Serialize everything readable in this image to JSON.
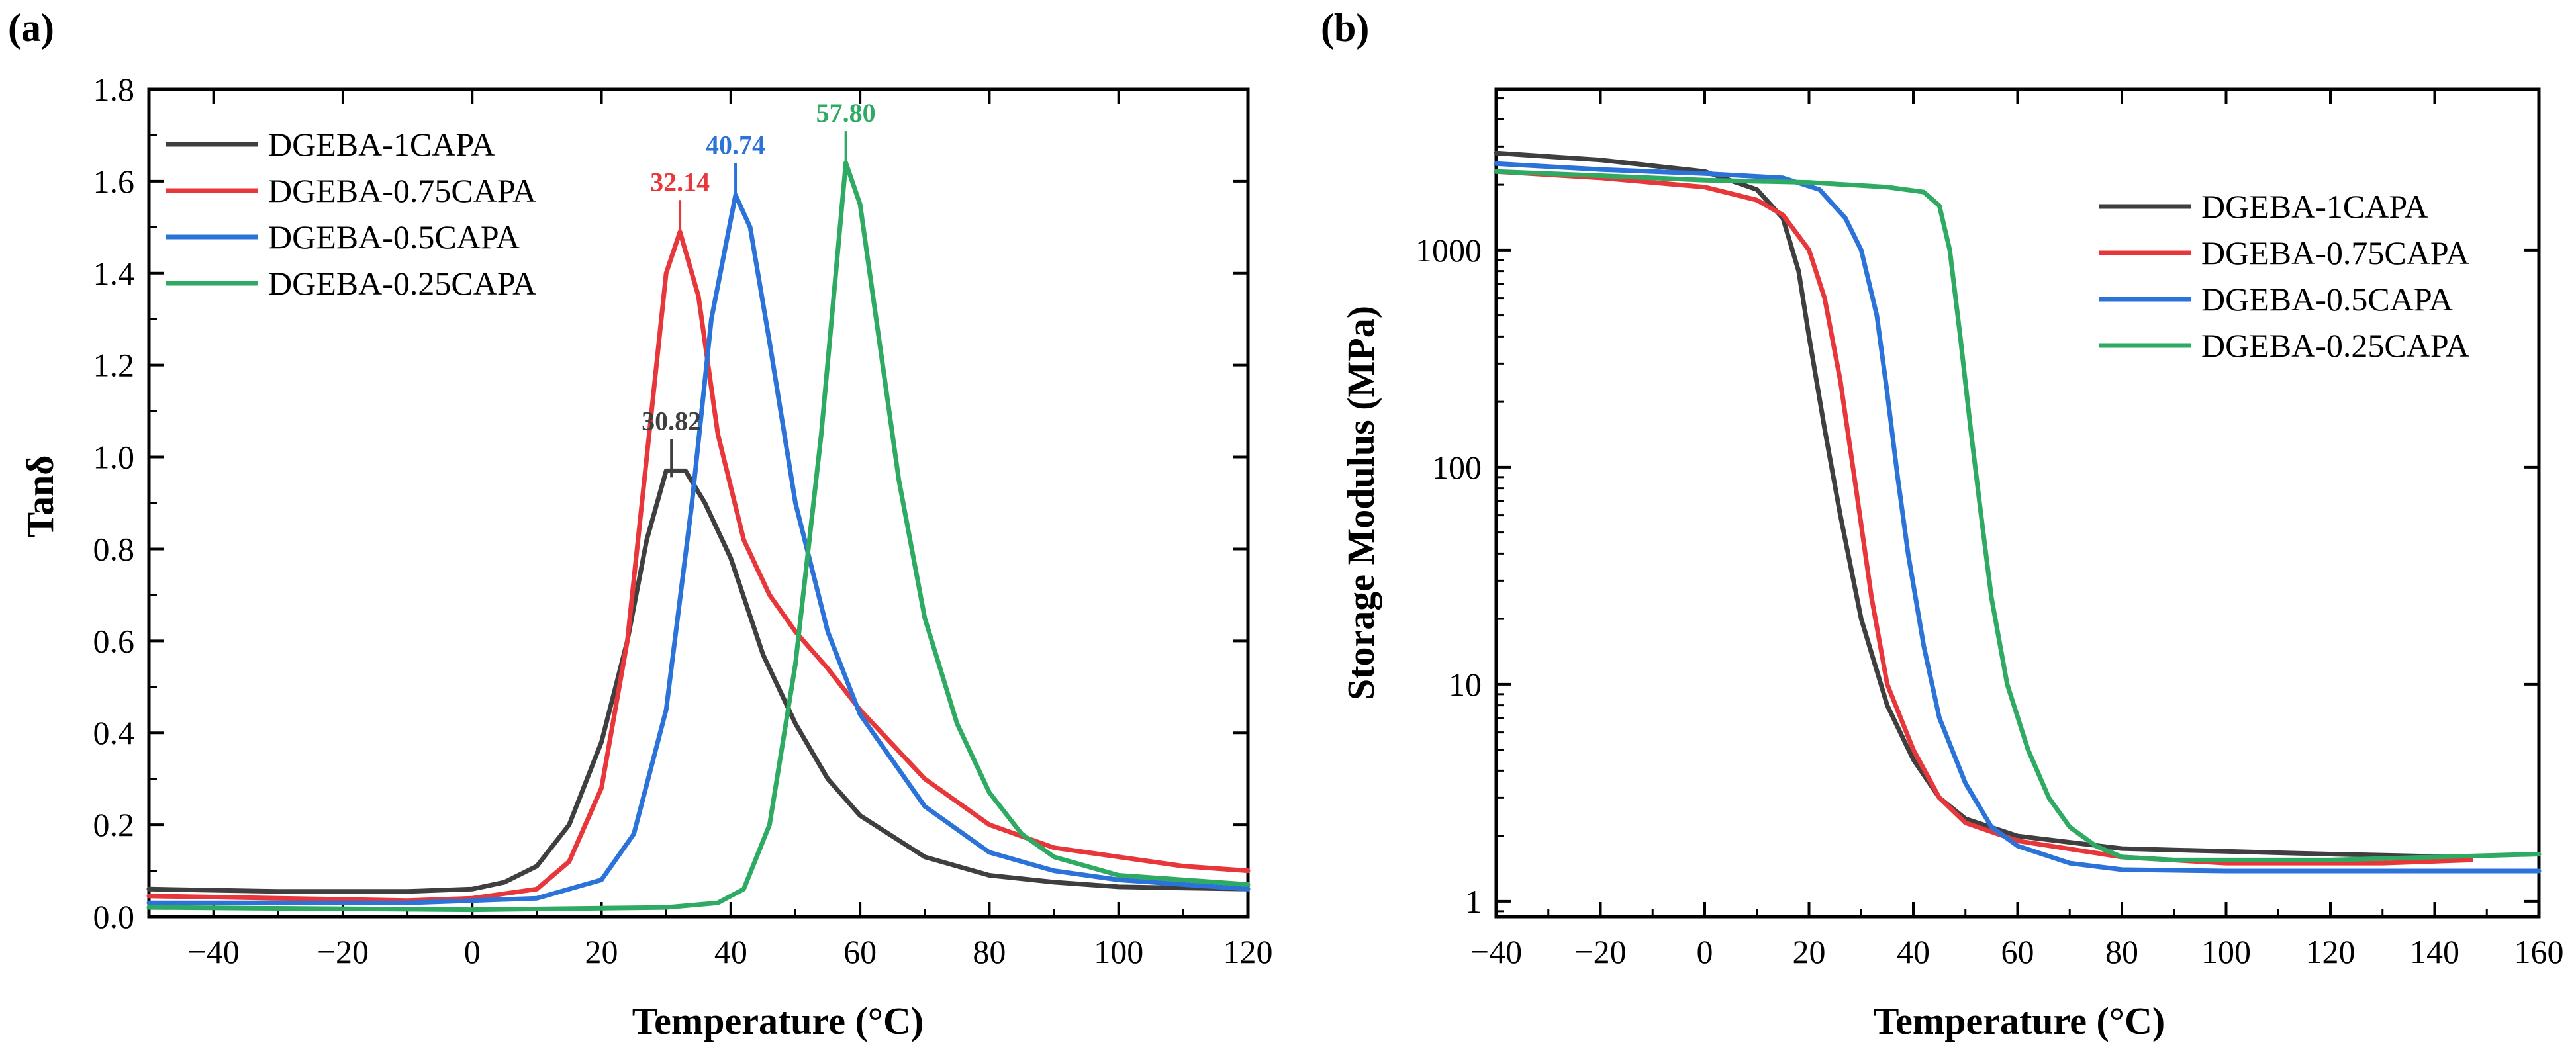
{
  "colors": {
    "series1": "#3f3f3f",
    "series2": "#e8373a",
    "series3": "#2b73d8",
    "series4": "#2faa62"
  },
  "chart_data": [
    {
      "panel_label": "(a)",
      "type": "line",
      "xlabel": "Temperature (°C)",
      "ylabel": "Tanδ",
      "xlim": [
        -50,
        120
      ],
      "ylim": [
        0.0,
        1.8
      ],
      "yscale": "linear",
      "xticks": [
        -40,
        -20,
        0,
        20,
        40,
        60,
        80,
        100,
        120
      ],
      "xtick_labels": [
        "−40",
        "−20",
        "0",
        "20",
        "40",
        "60",
        "80",
        "100",
        "120"
      ],
      "yticks": [
        0.0,
        0.2,
        0.4,
        0.6,
        0.8,
        1.0,
        1.2,
        1.4,
        1.6,
        1.8
      ],
      "ytick_labels": [
        "0.0",
        "0.2",
        "0.4",
        "0.6",
        "0.8",
        "1.0",
        "1.2",
        "1.4",
        "1.6",
        "1.8"
      ],
      "legend_position": "top-left",
      "series": [
        {
          "name": "DGEBA-1CAPA",
          "color_key": "series1",
          "peak_label": "30.82",
          "peak": {
            "x": 30.82,
            "y": 0.97
          },
          "points": [
            [
              -50,
              0.06
            ],
            [
              -30,
              0.055
            ],
            [
              -10,
              0.055
            ],
            [
              0,
              0.06
            ],
            [
              5,
              0.075
            ],
            [
              10,
              0.11
            ],
            [
              15,
              0.2
            ],
            [
              20,
              0.38
            ],
            [
              24,
              0.6
            ],
            [
              27,
              0.82
            ],
            [
              30,
              0.97
            ],
            [
              33,
              0.97
            ],
            [
              36,
              0.9
            ],
            [
              40,
              0.78
            ],
            [
              45,
              0.57
            ],
            [
              50,
              0.42
            ],
            [
              55,
              0.3
            ],
            [
              60,
              0.22
            ],
            [
              70,
              0.13
            ],
            [
              80,
              0.09
            ],
            [
              90,
              0.075
            ],
            [
              100,
              0.065
            ],
            [
              120,
              0.06
            ]
          ]
        },
        {
          "name": "DGEBA-0.75CAPA",
          "color_key": "series2",
          "peak_label": "32.14",
          "peak": {
            "x": 32.14,
            "y": 1.49
          },
          "points": [
            [
              -50,
              0.045
            ],
            [
              -30,
              0.04
            ],
            [
              -10,
              0.035
            ],
            [
              0,
              0.04
            ],
            [
              10,
              0.06
            ],
            [
              15,
              0.12
            ],
            [
              20,
              0.28
            ],
            [
              24,
              0.6
            ],
            [
              27,
              1.0
            ],
            [
              30,
              1.4
            ],
            [
              32.14,
              1.49
            ],
            [
              35,
              1.35
            ],
            [
              38,
              1.05
            ],
            [
              42,
              0.82
            ],
            [
              46,
              0.7
            ],
            [
              50,
              0.62
            ],
            [
              55,
              0.54
            ],
            [
              60,
              0.45
            ],
            [
              70,
              0.3
            ],
            [
              80,
              0.2
            ],
            [
              90,
              0.15
            ],
            [
              100,
              0.13
            ],
            [
              110,
              0.11
            ],
            [
              120,
              0.1
            ]
          ]
        },
        {
          "name": "DGEBA-0.5CAPA",
          "color_key": "series3",
          "peak_label": "40.74",
          "peak": {
            "x": 40.74,
            "y": 1.57
          },
          "points": [
            [
              -50,
              0.03
            ],
            [
              -30,
              0.03
            ],
            [
              -10,
              0.03
            ],
            [
              0,
              0.035
            ],
            [
              10,
              0.04
            ],
            [
              20,
              0.08
            ],
            [
              25,
              0.18
            ],
            [
              30,
              0.45
            ],
            [
              34,
              0.9
            ],
            [
              37,
              1.3
            ],
            [
              40.74,
              1.57
            ],
            [
              43,
              1.5
            ],
            [
              46,
              1.25
            ],
            [
              50,
              0.9
            ],
            [
              55,
              0.62
            ],
            [
              60,
              0.44
            ],
            [
              70,
              0.24
            ],
            [
              80,
              0.14
            ],
            [
              90,
              0.1
            ],
            [
              100,
              0.08
            ],
            [
              120,
              0.06
            ]
          ]
        },
        {
          "name": "DGEBA-0.25CAPA",
          "color_key": "series4",
          "peak_label": "57.80",
          "peak": {
            "x": 57.8,
            "y": 1.64
          },
          "points": [
            [
              -50,
              0.02
            ],
            [
              -30,
              0.018
            ],
            [
              0,
              0.015
            ],
            [
              30,
              0.02
            ],
            [
              38,
              0.03
            ],
            [
              42,
              0.06
            ],
            [
              46,
              0.2
            ],
            [
              50,
              0.55
            ],
            [
              54,
              1.05
            ],
            [
              57.8,
              1.64
            ],
            [
              60,
              1.55
            ],
            [
              63,
              1.25
            ],
            [
              66,
              0.95
            ],
            [
              70,
              0.65
            ],
            [
              75,
              0.42
            ],
            [
              80,
              0.27
            ],
            [
              85,
              0.18
            ],
            [
              90,
              0.13
            ],
            [
              100,
              0.09
            ],
            [
              110,
              0.08
            ],
            [
              120,
              0.07
            ]
          ]
        }
      ]
    },
    {
      "panel_label": "(b)",
      "type": "line",
      "xlabel": "Temperature (°C)",
      "ylabel": "Storage Modulus (MPa)",
      "xlim": [
        -40,
        160
      ],
      "ylim": [
        0.85,
        5500
      ],
      "yscale": "log",
      "xticks": [
        -40,
        -20,
        0,
        20,
        40,
        60,
        80,
        100,
        120,
        140,
        160
      ],
      "xtick_labels": [
        "−40",
        "−20",
        "0",
        "20",
        "40",
        "60",
        "80",
        "100",
        "120",
        "140",
        "160"
      ],
      "yticks": [
        1,
        10,
        100,
        1000
      ],
      "ytick_labels": [
        "1",
        "10",
        "100",
        "1000"
      ],
      "legend_position": "top-right",
      "series": [
        {
          "name": "DGEBA-1CAPA",
          "color_key": "series1",
          "points": [
            [
              -40,
              2800
            ],
            [
              -20,
              2600
            ],
            [
              0,
              2300
            ],
            [
              10,
              1900
            ],
            [
              15,
              1400
            ],
            [
              18,
              800
            ],
            [
              20,
              400
            ],
            [
              23,
              150
            ],
            [
              26,
              60
            ],
            [
              30,
              20
            ],
            [
              35,
              8
            ],
            [
              40,
              4.5
            ],
            [
              45,
              3
            ],
            [
              50,
              2.4
            ],
            [
              60,
              2
            ],
            [
              80,
              1.75
            ],
            [
              100,
              1.7
            ],
            [
              120,
              1.65
            ],
            [
              145,
              1.6
            ]
          ]
        },
        {
          "name": "DGEBA-0.75CAPA",
          "color_key": "series2",
          "points": [
            [
              -40,
              2300
            ],
            [
              -20,
              2150
            ],
            [
              0,
              1950
            ],
            [
              10,
              1700
            ],
            [
              15,
              1450
            ],
            [
              20,
              1000
            ],
            [
              23,
              600
            ],
            [
              26,
              250
            ],
            [
              29,
              80
            ],
            [
              32,
              25
            ],
            [
              35,
              10
            ],
            [
              40,
              5
            ],
            [
              45,
              3
            ],
            [
              50,
              2.3
            ],
            [
              60,
              1.9
            ],
            [
              80,
              1.6
            ],
            [
              100,
              1.5
            ],
            [
              130,
              1.5
            ],
            [
              147,
              1.55
            ]
          ]
        },
        {
          "name": "DGEBA-0.5CAPA",
          "color_key": "series3",
          "points": [
            [
              -40,
              2500
            ],
            [
              -20,
              2350
            ],
            [
              0,
              2250
            ],
            [
              15,
              2150
            ],
            [
              22,
              1900
            ],
            [
              27,
              1400
            ],
            [
              30,
              1000
            ],
            [
              33,
              500
            ],
            [
              35,
              220
            ],
            [
              37,
              90
            ],
            [
              39,
              40
            ],
            [
              42,
              15
            ],
            [
              45,
              7
            ],
            [
              50,
              3.5
            ],
            [
              55,
              2.2
            ],
            [
              60,
              1.8
            ],
            [
              70,
              1.5
            ],
            [
              80,
              1.4
            ],
            [
              100,
              1.38
            ],
            [
              160,
              1.38
            ]
          ]
        },
        {
          "name": "DGEBA-0.25CAPA",
          "color_key": "series4",
          "points": [
            [
              -40,
              2300
            ],
            [
              -20,
              2200
            ],
            [
              0,
              2100
            ],
            [
              20,
              2050
            ],
            [
              35,
              1950
            ],
            [
              42,
              1850
            ],
            [
              45,
              1600
            ],
            [
              47,
              1000
            ],
            [
              49,
              400
            ],
            [
              51,
              150
            ],
            [
              53,
              60
            ],
            [
              55,
              25
            ],
            [
              58,
              10
            ],
            [
              62,
              5
            ],
            [
              66,
              3
            ],
            [
              70,
              2.2
            ],
            [
              75,
              1.8
            ],
            [
              80,
              1.6
            ],
            [
              90,
              1.55
            ],
            [
              120,
              1.55
            ],
            [
              140,
              1.6
            ],
            [
              160,
              1.65
            ]
          ]
        }
      ]
    }
  ]
}
